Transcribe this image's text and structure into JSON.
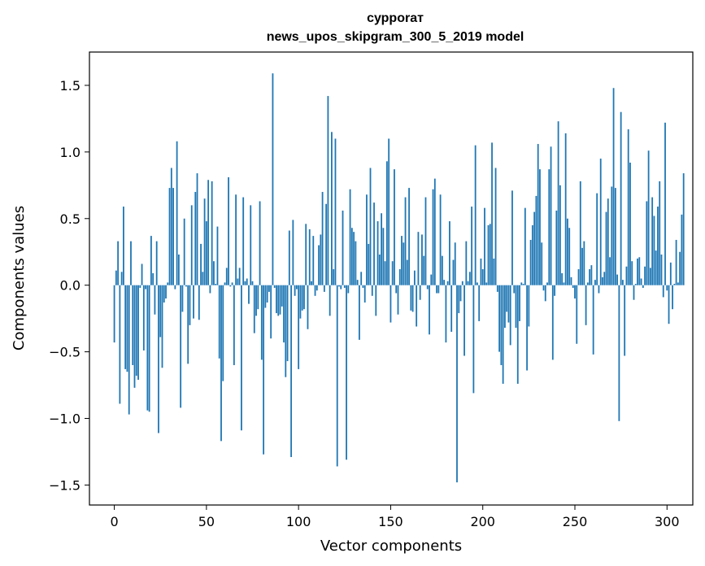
{
  "chart_data": {
    "type": "bar",
    "title_line1": "сурроrат",
    "title_line2": "news_upos_skipgram_300_5_2019 model",
    "xlabel": "Vector components",
    "ylabel": "Components values",
    "xlim": [
      -13.5,
      314
    ],
    "ylim": [
      -1.65,
      1.75
    ],
    "xticks": [
      0,
      50,
      100,
      150,
      200,
      250,
      300
    ],
    "xtick_labels": [
      "0",
      "50",
      "100",
      "150",
      "200",
      "250",
      "300"
    ],
    "yticks": [
      1.5,
      1.0,
      0.5,
      0.0,
      -0.5,
      -1.0,
      -1.5
    ],
    "ytick_labels": [
      "1.5",
      "1.0",
      "0.5",
      "0.0",
      "−0.5",
      "−1.0",
      "−1.5"
    ],
    "bar_color": "#1f77b4",
    "grid": false,
    "values": [
      -0.43,
      0.11,
      0.33,
      -0.89,
      0.1,
      0.59,
      -0.63,
      -0.65,
      -0.97,
      0.33,
      -0.6,
      -0.77,
      -0.68,
      -0.71,
      -0.02,
      0.16,
      -0.49,
      -0.03,
      -0.94,
      -0.95,
      0.37,
      0.09,
      -0.22,
      0.33,
      -1.11,
      -0.39,
      -0.62,
      -0.13,
      -0.1,
      0.02,
      0.73,
      0.88,
      0.73,
      -0.03,
      1.08,
      0.23,
      -0.92,
      -0.2,
      0.5,
      -0.01,
      -0.59,
      -0.3,
      0.6,
      -0.25,
      0.7,
      0.84,
      -0.26,
      0.31,
      0.1,
      0.65,
      0.48,
      0.79,
      -0.06,
      0.78,
      0.18,
      0.01,
      0.44,
      -0.55,
      -1.17,
      -0.72,
      0.02,
      0.13,
      0.81,
      -0.01,
      0.02,
      -0.6,
      0.68,
      0.05,
      0.13,
      -1.09,
      0.66,
      0.03,
      0.05,
      -0.14,
      0.6,
      0.03,
      -0.36,
      -0.23,
      -0.18,
      0.63,
      -0.56,
      -1.27,
      -0.17,
      -0.13,
      -0.05,
      -0.4,
      1.59,
      -0.02,
      -0.21,
      -0.23,
      -0.22,
      -0.16,
      -0.43,
      -0.69,
      -0.57,
      0.41,
      -1.29,
      0.49,
      -0.08,
      -0.03,
      -0.63,
      -0.25,
      -0.19,
      -0.18,
      0.46,
      -0.33,
      0.42,
      0.03,
      0.37,
      -0.08,
      -0.04,
      0.3,
      0.38,
      0.7,
      -0.05,
      0.61,
      1.42,
      -0.23,
      1.15,
      0.12,
      1.1,
      -1.36,
      -0.01,
      -0.03,
      0.56,
      -0.02,
      -1.31,
      -0.06,
      0.72,
      0.43,
      0.4,
      0.33,
      0.04,
      -0.41,
      0.1,
      -0.02,
      -0.13,
      0.68,
      0.31,
      0.88,
      -0.08,
      0.62,
      -0.23,
      0.48,
      0.23,
      0.54,
      0.43,
      0.18,
      0.93,
      1.1,
      -0.28,
      0.18,
      0.87,
      -0.06,
      -0.22,
      0.12,
      0.37,
      0.32,
      0.66,
      0.19,
      0.73,
      -0.19,
      -0.2,
      0.11,
      -0.31,
      0.4,
      -0.11,
      0.38,
      0.22,
      0.66,
      -0.03,
      -0.37,
      0.08,
      0.72,
      0.8,
      -0.06,
      -0.06,
      0.68,
      0.22,
      0.04,
      -0.43,
      0.03,
      0.48,
      -0.35,
      0.19,
      0.32,
      -1.48,
      -0.21,
      -0.12,
      0.03,
      -0.53,
      0.33,
      0.03,
      0.1,
      0.59,
      -0.81,
      1.05,
      0.02,
      -0.27,
      0.2,
      0.12,
      0.58,
      0.02,
      0.45,
      0.46,
      1.07,
      0.2,
      0.88,
      -0.05,
      -0.5,
      -0.6,
      -0.74,
      -0.32,
      -0.2,
      -0.28,
      -0.45,
      0.71,
      -0.06,
      -0.32,
      -0.74,
      -0.27,
      0.02,
      0.01,
      0.58,
      -0.64,
      -0.31,
      0.34,
      0.45,
      0.55,
      0.67,
      1.06,
      0.87,
      0.32,
      -0.04,
      -0.12,
      0.02,
      0.87,
      1.04,
      -0.56,
      -0.08,
      0.56,
      1.23,
      0.75,
      0.09,
      0.02,
      1.14,
      0.5,
      0.43,
      0.06,
      -0.02,
      -0.1,
      -0.44,
      0.12,
      0.78,
      0.28,
      0.33,
      -0.3,
      0.02,
      0.12,
      0.15,
      -0.52,
      0.04,
      0.69,
      -0.06,
      0.95,
      0.06,
      0.1,
      0.55,
      0.65,
      0.21,
      0.74,
      1.48,
      0.73,
      0.08,
      -1.02,
      1.3,
      0.04,
      -0.53,
      0.14,
      1.17,
      0.92,
      0.18,
      -0.11,
      0.01,
      0.2,
      0.21,
      0.05,
      -0.02,
      0.14,
      0.63,
      1.01,
      0.13,
      0.66,
      0.52,
      0.26,
      0.59,
      0.78,
      0.23,
      -0.09,
      1.22,
      -0.04,
      -0.29,
      0.17,
      -0.18,
      0.01,
      0.34,
      0.02,
      0.25,
      0.53,
      0.84
    ]
  }
}
